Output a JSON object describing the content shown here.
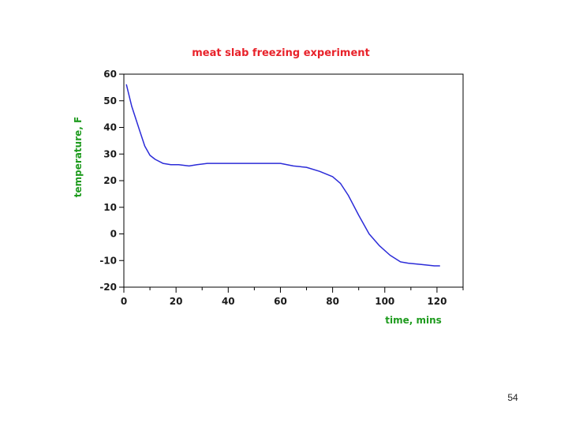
{
  "slide": {
    "page_number": "54"
  },
  "colors": {
    "title": "#e8222a",
    "axis_title": "#1e9b1e",
    "series_line": "#2b2bd8",
    "frame": "#000000"
  },
  "chart_data": {
    "type": "line",
    "title": "meat slab freezing experiment",
    "xlabel": "time, mins",
    "ylabel": "temperature, F",
    "xlim": [
      0,
      130
    ],
    "ylim": [
      -20,
      60
    ],
    "xticks": [
      0,
      20,
      40,
      60,
      80,
      100,
      120
    ],
    "yticks": [
      60,
      50,
      40,
      30,
      20,
      10,
      0,
      -10,
      -20
    ],
    "grid": false,
    "legend": "none",
    "series": [
      {
        "x": [
          1,
          3,
          6,
          8,
          10,
          12,
          15,
          18,
          21,
          25,
          28,
          32,
          40,
          50,
          60,
          65,
          70,
          75,
          80,
          83,
          86,
          90,
          94,
          98,
          102,
          106,
          109,
          114,
          119,
          121
        ],
        "y": [
          56,
          48,
          39,
          33,
          29.5,
          28,
          26.5,
          26,
          26,
          25.5,
          26,
          26.5,
          26.5,
          26.5,
          26.5,
          25.5,
          25,
          23.5,
          21.5,
          19,
          14.5,
          7,
          0,
          -4.5,
          -8,
          -10.5,
          -11,
          -11.5,
          -12,
          -12
        ]
      }
    ]
  }
}
